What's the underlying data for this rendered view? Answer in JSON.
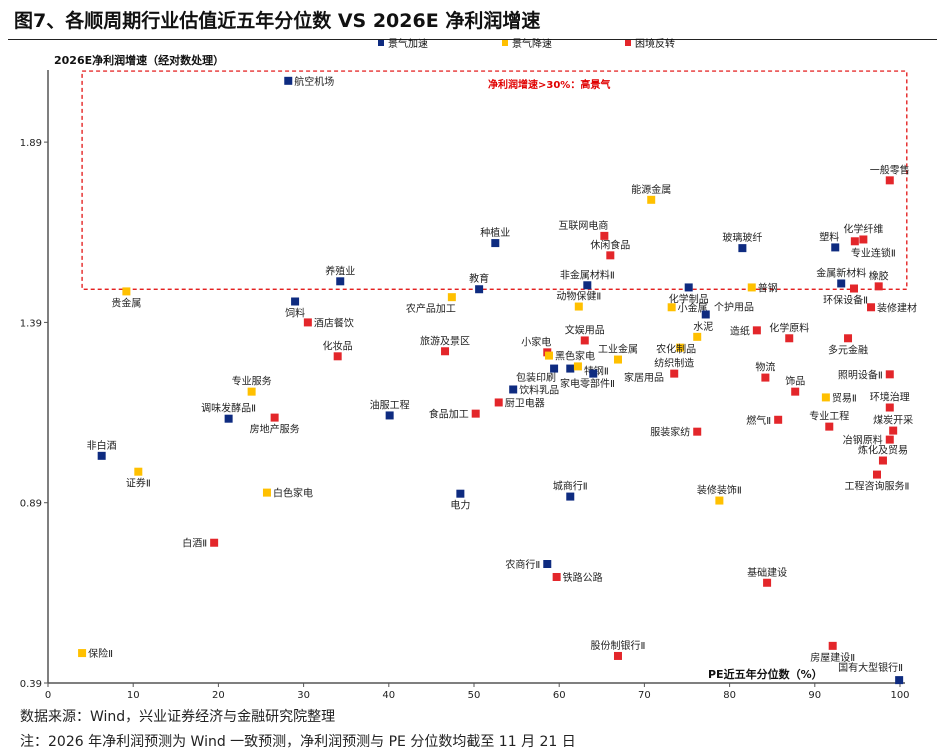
{
  "title": "图7、各顺周期行业估值近五年分位数  VS 2026E 净利润增速",
  "notes": {
    "source": "数据来源：Wind，兴业证券经济与金融研究院整理",
    "remark": "注：2026 年净利润预测为 Wind 一致预测，净利润预测与 PE 分位数均截至 11 月 21 日"
  },
  "chart_data": {
    "type": "scatter",
    "xlabel": "PE近五年分位数（%）",
    "ylabel": "2026E净利润增速（经对数处理）",
    "xlim": [
      0,
      100
    ],
    "ylim": [
      0.39,
      2.09
    ],
    "xticks": [
      "0",
      "10",
      "20",
      "30",
      "40",
      "50",
      "60",
      "70",
      "80",
      "90",
      "100"
    ],
    "yticks": [
      "0.39",
      "0.89",
      "1.39",
      "1.89"
    ],
    "grid": false,
    "legend_position": "top",
    "legend": [
      {
        "key": "accel",
        "label": "景气加速",
        "color": "#0e2b80"
      },
      {
        "key": "decel",
        "label": "景气降速",
        "color": "#ffc000"
      },
      {
        "key": "turn",
        "label": "困境反转",
        "color": "#e3262a"
      }
    ],
    "annotation": {
      "label": "净利润增速>30%：高景气",
      "color": "#e00000",
      "x_range": [
        4,
        100.8
      ],
      "y_range": [
        1.482,
        2.087
      ]
    },
    "points": [
      {
        "name": "航空机场",
        "x": 28.2,
        "y": 2.06,
        "group": "accel",
        "label_pos": "right"
      },
      {
        "name": "贵金属",
        "x": 9.2,
        "y": 1.476,
        "group": "decel",
        "label_pos": "below"
      },
      {
        "name": "饲料",
        "x": 29.0,
        "y": 1.448,
        "group": "accel",
        "label_pos": "below"
      },
      {
        "name": "养殖业",
        "x": 34.3,
        "y": 1.504,
        "group": "accel",
        "label_pos": "above"
      },
      {
        "name": "酒店餐饮",
        "x": 30.5,
        "y": 1.39,
        "group": "turn",
        "label_pos": "right"
      },
      {
        "name": "化妆品",
        "x": 34.0,
        "y": 1.296,
        "group": "turn",
        "label_pos": "above"
      },
      {
        "name": "教育",
        "x": 50.6,
        "y": 1.482,
        "group": "accel",
        "label_pos": "above"
      },
      {
        "name": "农产品加工",
        "x": 47.4,
        "y": 1.46,
        "group": "decel",
        "label_pos": "below-left"
      },
      {
        "name": "旅游及景区",
        "x": 46.6,
        "y": 1.31,
        "group": "turn",
        "label_pos": "above"
      },
      {
        "name": "种植业",
        "x": 52.5,
        "y": 1.61,
        "group": "accel",
        "label_pos": "above"
      },
      {
        "name": "能源金属",
        "x": 70.8,
        "y": 1.73,
        "group": "decel",
        "label_pos": "above"
      },
      {
        "name": "互联网电商",
        "x": 65.3,
        "y": 1.63,
        "group": "turn",
        "label_pos": "above-left"
      },
      {
        "name": "休闲食品",
        "x": 66.0,
        "y": 1.576,
        "group": "turn",
        "label_pos": "above"
      },
      {
        "name": "非金属材料Ⅱ",
        "x": 63.3,
        "y": 1.493,
        "group": "accel",
        "label_pos": "above"
      },
      {
        "name": "动物保健Ⅱ",
        "x": 62.3,
        "y": 1.434,
        "group": "decel",
        "label_pos": "above"
      },
      {
        "name": "化学制品",
        "x": 75.2,
        "y": 1.487,
        "group": "accel",
        "label_pos": "below"
      },
      {
        "name": "小金属",
        "x": 73.2,
        "y": 1.432,
        "group": "decel",
        "label_pos": "right"
      },
      {
        "name": "个护用品",
        "x": 77.2,
        "y": 1.412,
        "group": "accel",
        "label_pos": "above-right"
      },
      {
        "name": "玻璃玻纤",
        "x": 81.5,
        "y": 1.596,
        "group": "accel",
        "label_pos": "above"
      },
      {
        "name": "普钢",
        "x": 82.6,
        "y": 1.487,
        "group": "decel",
        "label_pos": "right"
      },
      {
        "name": "塑料",
        "x": 92.4,
        "y": 1.598,
        "group": "accel",
        "label_pos": "above-left"
      },
      {
        "name": "化学纤维",
        "x": 95.7,
        "y": 1.62,
        "group": "turn",
        "label_pos": "above"
      },
      {
        "name": "专业连锁Ⅱ",
        "x": 94.7,
        "y": 1.615,
        "group": "turn",
        "label_pos": "below-right"
      },
      {
        "name": "一般零售",
        "x": 98.8,
        "y": 1.784,
        "group": "turn",
        "label_pos": "above"
      },
      {
        "name": "金属新材料",
        "x": 93.1,
        "y": 1.498,
        "group": "accel",
        "label_pos": "above"
      },
      {
        "name": "环保设备Ⅱ",
        "x": 94.6,
        "y": 1.484,
        "group": "turn",
        "label_pos": "below"
      },
      {
        "name": "橡胶",
        "x": 97.5,
        "y": 1.49,
        "group": "turn",
        "label_pos": "above"
      },
      {
        "name": "装修建材",
        "x": 96.6,
        "y": 1.432,
        "group": "turn",
        "label_pos": "right"
      },
      {
        "name": "造纸",
        "x": 83.2,
        "y": 1.368,
        "group": "turn",
        "label_pos": "left"
      },
      {
        "name": "化学原料",
        "x": 87.0,
        "y": 1.346,
        "group": "turn",
        "label_pos": "above"
      },
      {
        "name": "多元金融",
        "x": 93.9,
        "y": 1.346,
        "group": "turn",
        "label_pos": "below"
      },
      {
        "name": "水泥",
        "x": 76.2,
        "y": 1.35,
        "group": "decel",
        "label_pos": "above-right"
      },
      {
        "name": "农化制品",
        "x": 74.2,
        "y": 1.32,
        "group": "decel",
        "label_pos": "none"
      },
      {
        "name": "文娱用品",
        "x": 63.0,
        "y": 1.34,
        "group": "turn",
        "label_pos": "above"
      },
      {
        "name": "小家电",
        "x": 58.6,
        "y": 1.307,
        "group": "turn",
        "label_pos": "above-left"
      },
      {
        "name": "黑色家电",
        "x": 58.8,
        "y": 1.298,
        "group": "decel",
        "label_pos": "right"
      },
      {
        "name": "包装印刷",
        "x": 59.4,
        "y": 1.262,
        "group": "accel",
        "label_pos": "below-left"
      },
      {
        "name": "家电零部件Ⅱ",
        "x": 61.3,
        "y": 1.262,
        "group": "accel",
        "label_pos": "below"
      },
      {
        "name": "特钢Ⅱ",
        "x": 62.2,
        "y": 1.268,
        "group": "decel",
        "label_pos": "right"
      },
      {
        "name": "家居用品",
        "x": 64.0,
        "y": 1.248,
        "group": "accel",
        "label_pos": "right"
      },
      {
        "name": "工业金属",
        "x": 66.9,
        "y": 1.287,
        "group": "decel",
        "label_pos": "above"
      },
      {
        "name": "纺织制造",
        "x": 73.5,
        "y": 1.248,
        "group": "turn",
        "label_pos": "above"
      },
      {
        "name": "饮料乳品",
        "x": 54.6,
        "y": 1.204,
        "group": "accel",
        "label_pos": "right"
      },
      {
        "name": "厨卫电器",
        "x": 52.9,
        "y": 1.168,
        "group": "turn",
        "label_pos": "right"
      },
      {
        "name": "物流",
        "x": 84.2,
        "y": 1.237,
        "group": "turn",
        "label_pos": "above"
      },
      {
        "name": "饰品",
        "x": 87.7,
        "y": 1.198,
        "group": "turn",
        "label_pos": "above"
      },
      {
        "name": "照明设备Ⅱ",
        "x": 98.8,
        "y": 1.246,
        "group": "turn",
        "label_pos": "left"
      },
      {
        "name": "贸易Ⅱ",
        "x": 91.3,
        "y": 1.182,
        "group": "decel",
        "label_pos": "right"
      },
      {
        "name": "环境治理",
        "x": 98.8,
        "y": 1.154,
        "group": "turn",
        "label_pos": "above"
      },
      {
        "name": "燃气Ⅱ",
        "x": 85.7,
        "y": 1.12,
        "group": "turn",
        "label_pos": "left"
      },
      {
        "name": "专业工程",
        "x": 91.7,
        "y": 1.101,
        "group": "turn",
        "label_pos": "above"
      },
      {
        "name": "煤炭开采",
        "x": 99.2,
        "y": 1.09,
        "group": "turn",
        "label_pos": "above"
      },
      {
        "name": "冶钢原料",
        "x": 98.8,
        "y": 1.065,
        "group": "turn",
        "label_pos": "left"
      },
      {
        "name": "炼化及贸易",
        "x": 98.0,
        "y": 1.007,
        "group": "turn",
        "label_pos": "above"
      },
      {
        "name": "工程咨询服务Ⅱ",
        "x": 97.3,
        "y": 0.968,
        "group": "turn",
        "label_pos": "below"
      },
      {
        "name": "服装家纺",
        "x": 76.2,
        "y": 1.087,
        "group": "turn",
        "label_pos": "left"
      },
      {
        "name": "城商行Ⅱ",
        "x": 61.3,
        "y": 0.907,
        "group": "accel",
        "label_pos": "above"
      },
      {
        "name": "装修装饰Ⅱ",
        "x": 78.8,
        "y": 0.896,
        "group": "decel",
        "label_pos": "above"
      },
      {
        "name": "农商行Ⅱ",
        "x": 58.6,
        "y": 0.72,
        "group": "accel",
        "label_pos": "left"
      },
      {
        "name": "铁路公路",
        "x": 59.7,
        "y": 0.684,
        "group": "turn",
        "label_pos": "right"
      },
      {
        "name": "基础建设",
        "x": 84.4,
        "y": 0.668,
        "group": "turn",
        "label_pos": "above"
      },
      {
        "name": "股份制银行Ⅱ",
        "x": 66.9,
        "y": 0.465,
        "group": "turn",
        "label_pos": "above"
      },
      {
        "name": "房屋建设Ⅱ",
        "x": 92.1,
        "y": 0.493,
        "group": "turn",
        "label_pos": "below"
      },
      {
        "name": "国有大型银行Ⅱ",
        "x": 99.9,
        "y": 0.398,
        "group": "accel",
        "label_pos": "above-left"
      },
      {
        "name": "专业服务",
        "x": 23.9,
        "y": 1.198,
        "group": "decel",
        "label_pos": "above"
      },
      {
        "name": "调味发酵品Ⅱ",
        "x": 21.2,
        "y": 1.123,
        "group": "accel",
        "label_pos": "above"
      },
      {
        "name": "房地产服务",
        "x": 26.6,
        "y": 1.126,
        "group": "turn",
        "label_pos": "below"
      },
      {
        "name": "油服工程",
        "x": 40.1,
        "y": 1.132,
        "group": "accel",
        "label_pos": "above"
      },
      {
        "name": "食品加工",
        "x": 50.2,
        "y": 1.137,
        "group": "turn",
        "label_pos": "left"
      },
      {
        "name": "非白酒",
        "x": 6.3,
        "y": 1.02,
        "group": "accel",
        "label_pos": "above"
      },
      {
        "name": "证券Ⅱ",
        "x": 10.6,
        "y": 0.976,
        "group": "decel",
        "label_pos": "below"
      },
      {
        "name": "白色家电",
        "x": 25.7,
        "y": 0.918,
        "group": "decel",
        "label_pos": "right"
      },
      {
        "name": "电力",
        "x": 48.4,
        "y": 0.915,
        "group": "accel",
        "label_pos": "below"
      },
      {
        "name": "白酒Ⅱ",
        "x": 19.5,
        "y": 0.779,
        "group": "turn",
        "label_pos": "left"
      },
      {
        "name": "保险Ⅱ",
        "x": 4.0,
        "y": 0.473,
        "group": "decel",
        "label_pos": "right"
      }
    ]
  }
}
